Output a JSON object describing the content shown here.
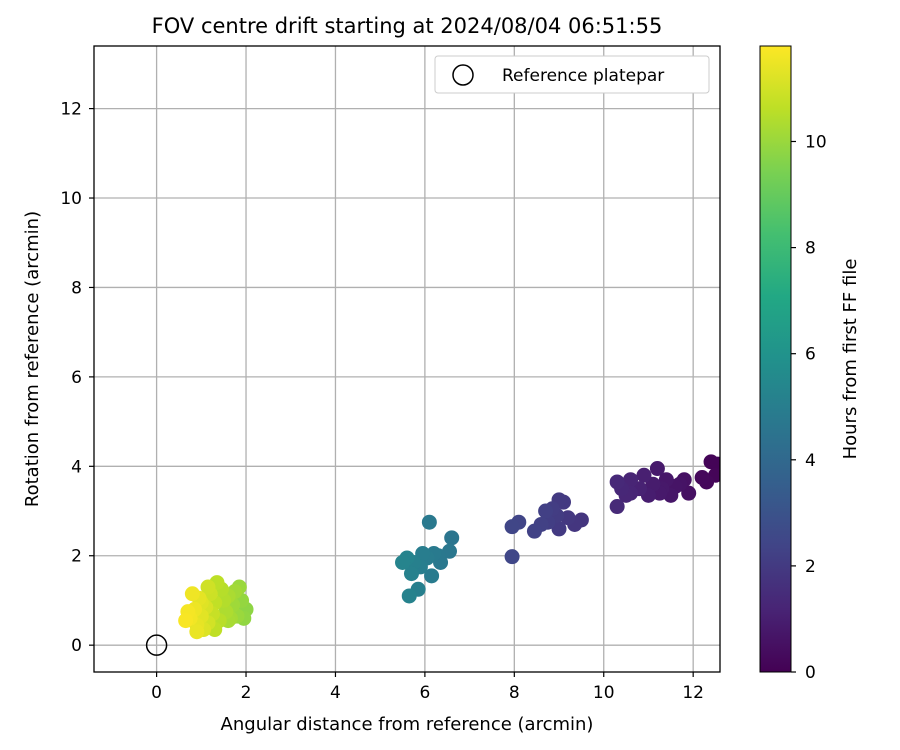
{
  "chart_data": {
    "type": "scatter",
    "title": "FOV centre drift starting at 2024/08/04 06:51:55",
    "xlabel": "Angular distance from reference (arcmin)",
    "ylabel": "Rotation from reference (arcmin)",
    "xlim": [
      -1.4,
      12.6
    ],
    "ylim": [
      -0.6,
      13.4
    ],
    "xticks": [
      0,
      2,
      4,
      6,
      8,
      10,
      12
    ],
    "yticks": [
      0,
      2,
      4,
      6,
      8,
      10,
      12
    ],
    "grid": true,
    "legend": {
      "position": "top-right",
      "entries": [
        "Reference platepar"
      ]
    },
    "reference_point": {
      "name": "Reference platepar",
      "x": 0,
      "y": 0
    },
    "colorbar": {
      "label": "Hours from first FF file",
      "colormap": "viridis",
      "range": [
        0,
        11.8
      ],
      "ticks": [
        0,
        2,
        4,
        6,
        8,
        10
      ]
    },
    "points": [
      {
        "x": 12.4,
        "y": 4.1,
        "c": 0.1
      },
      {
        "x": 12.5,
        "y": 3.8,
        "c": 0.15
      },
      {
        "x": 12.3,
        "y": 3.65,
        "c": 0.2
      },
      {
        "x": 12.55,
        "y": 4.05,
        "c": 0.1
      },
      {
        "x": 12.2,
        "y": 3.75,
        "c": 0.25
      },
      {
        "x": 11.9,
        "y": 3.4,
        "c": 0.5
      },
      {
        "x": 11.8,
        "y": 3.7,
        "c": 0.55
      },
      {
        "x": 11.6,
        "y": 3.55,
        "c": 0.65
      },
      {
        "x": 11.5,
        "y": 3.35,
        "c": 0.7
      },
      {
        "x": 11.3,
        "y": 3.5,
        "c": 0.8
      },
      {
        "x": 11.2,
        "y": 3.95,
        "c": 0.85
      },
      {
        "x": 11.1,
        "y": 3.6,
        "c": 0.9
      },
      {
        "x": 11.0,
        "y": 3.35,
        "c": 0.95
      },
      {
        "x": 11.7,
        "y": 3.6,
        "c": 0.6
      },
      {
        "x": 11.4,
        "y": 3.7,
        "c": 0.75
      },
      {
        "x": 11.25,
        "y": 3.4,
        "c": 0.82
      },
      {
        "x": 10.9,
        "y": 3.8,
        "c": 1.05
      },
      {
        "x": 10.8,
        "y": 3.5,
        "c": 1.1
      },
      {
        "x": 10.6,
        "y": 3.7,
        "c": 1.2
      },
      {
        "x": 10.5,
        "y": 3.35,
        "c": 1.25
      },
      {
        "x": 10.4,
        "y": 3.5,
        "c": 1.3
      },
      {
        "x": 10.3,
        "y": 3.65,
        "c": 1.35
      },
      {
        "x": 10.3,
        "y": 3.1,
        "c": 1.4
      },
      {
        "x": 10.6,
        "y": 3.4,
        "c": 1.22
      },
      {
        "x": 9.5,
        "y": 2.8,
        "c": 1.8
      },
      {
        "x": 9.35,
        "y": 2.7,
        "c": 1.85
      },
      {
        "x": 9.2,
        "y": 2.85,
        "c": 1.9
      },
      {
        "x": 9.1,
        "y": 3.2,
        "c": 1.95
      },
      {
        "x": 9.0,
        "y": 2.6,
        "c": 2.0
      },
      {
        "x": 8.95,
        "y": 2.9,
        "c": 2.05
      },
      {
        "x": 8.85,
        "y": 3.05,
        "c": 2.1
      },
      {
        "x": 8.75,
        "y": 2.75,
        "c": 2.15
      },
      {
        "x": 8.7,
        "y": 3.0,
        "c": 2.2
      },
      {
        "x": 8.6,
        "y": 2.7,
        "c": 2.25
      },
      {
        "x": 8.45,
        "y": 2.55,
        "c": 2.3
      },
      {
        "x": 8.1,
        "y": 2.75,
        "c": 2.4
      },
      {
        "x": 7.95,
        "y": 2.65,
        "c": 2.45
      },
      {
        "x": 7.95,
        "y": 1.98,
        "c": 2.5
      },
      {
        "x": 9.0,
        "y": 3.25,
        "c": 1.98
      },
      {
        "x": 6.6,
        "y": 2.4,
        "c": 4.6
      },
      {
        "x": 6.55,
        "y": 2.1,
        "c": 4.65
      },
      {
        "x": 6.35,
        "y": 1.85,
        "c": 4.7
      },
      {
        "x": 6.1,
        "y": 2.75,
        "c": 4.75
      },
      {
        "x": 6.2,
        "y": 2.05,
        "c": 4.8
      },
      {
        "x": 6.15,
        "y": 1.55,
        "c": 4.85
      },
      {
        "x": 6.05,
        "y": 1.95,
        "c": 4.9
      },
      {
        "x": 5.95,
        "y": 2.05,
        "c": 4.95
      },
      {
        "x": 5.9,
        "y": 1.75,
        "c": 5.0
      },
      {
        "x": 5.85,
        "y": 1.25,
        "c": 5.05
      },
      {
        "x": 5.75,
        "y": 1.85,
        "c": 5.1
      },
      {
        "x": 5.7,
        "y": 1.6,
        "c": 5.15
      },
      {
        "x": 5.65,
        "y": 1.1,
        "c": 5.2
      },
      {
        "x": 5.6,
        "y": 1.95,
        "c": 5.25
      },
      {
        "x": 5.5,
        "y": 1.85,
        "c": 5.3
      },
      {
        "x": 6.3,
        "y": 2.0,
        "c": 4.72
      },
      {
        "x": 2.0,
        "y": 0.8,
        "c": 9.8
      },
      {
        "x": 1.9,
        "y": 1.0,
        "c": 9.9
      },
      {
        "x": 1.85,
        "y": 1.3,
        "c": 10.0
      },
      {
        "x": 1.8,
        "y": 0.65,
        "c": 10.0
      },
      {
        "x": 1.7,
        "y": 0.9,
        "c": 10.1
      },
      {
        "x": 1.65,
        "y": 0.6,
        "c": 10.2
      },
      {
        "x": 1.6,
        "y": 1.1,
        "c": 10.3
      },
      {
        "x": 1.55,
        "y": 0.75,
        "c": 10.35
      },
      {
        "x": 1.45,
        "y": 1.25,
        "c": 10.5
      },
      {
        "x": 1.4,
        "y": 0.55,
        "c": 10.55
      },
      {
        "x": 1.35,
        "y": 1.4,
        "c": 10.6
      },
      {
        "x": 1.3,
        "y": 0.95,
        "c": 10.7
      },
      {
        "x": 1.25,
        "y": 0.7,
        "c": 10.8
      },
      {
        "x": 1.2,
        "y": 1.15,
        "c": 10.9
      },
      {
        "x": 1.15,
        "y": 0.5,
        "c": 11.0
      },
      {
        "x": 1.1,
        "y": 0.85,
        "c": 11.1
      },
      {
        "x": 1.05,
        "y": 0.35,
        "c": 11.2
      },
      {
        "x": 1.0,
        "y": 0.65,
        "c": 11.3
      },
      {
        "x": 0.95,
        "y": 1.05,
        "c": 11.35
      },
      {
        "x": 0.9,
        "y": 0.45,
        "c": 11.4
      },
      {
        "x": 0.85,
        "y": 0.8,
        "c": 11.5
      },
      {
        "x": 0.8,
        "y": 1.15,
        "c": 11.55
      },
      {
        "x": 0.75,
        "y": 0.6,
        "c": 11.6
      },
      {
        "x": 0.7,
        "y": 0.75,
        "c": 11.65
      },
      {
        "x": 0.65,
        "y": 0.55,
        "c": 11.7
      },
      {
        "x": 1.5,
        "y": 1.0,
        "c": 10.45
      },
      {
        "x": 1.75,
        "y": 1.2,
        "c": 10.15
      },
      {
        "x": 1.95,
        "y": 0.6,
        "c": 9.85
      },
      {
        "x": 1.3,
        "y": 0.35,
        "c": 10.65
      },
      {
        "x": 1.0,
        "y": 0.95,
        "c": 11.25
      },
      {
        "x": 0.9,
        "y": 0.3,
        "c": 11.45
      },
      {
        "x": 1.6,
        "y": 0.55,
        "c": 10.25
      },
      {
        "x": 1.15,
        "y": 1.3,
        "c": 10.95
      }
    ]
  }
}
